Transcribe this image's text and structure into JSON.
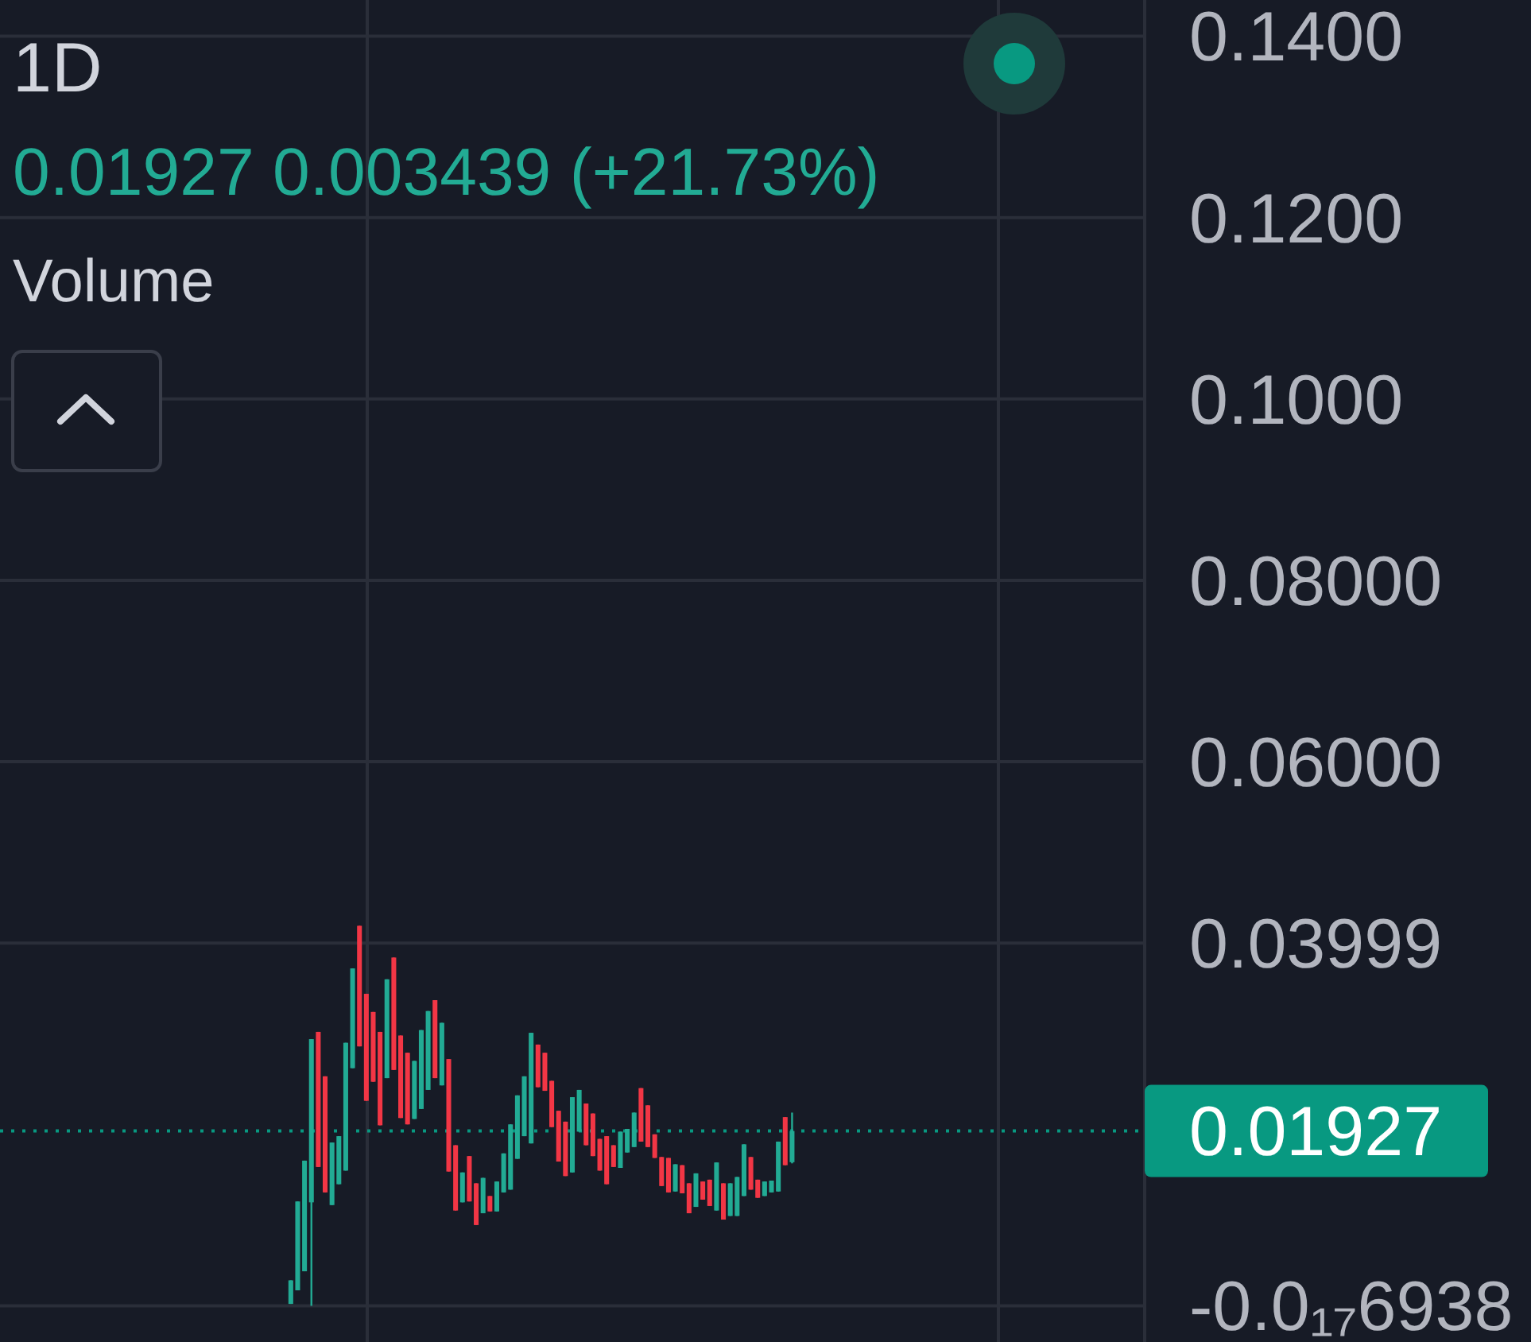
{
  "chart_data": {
    "type": "candlestick",
    "title": "1D",
    "subtitle": "0.01927 0.003439 (+21.73%)",
    "annotations": [
      "Volume"
    ],
    "categories": [
      null,
      null,
      null,
      null,
      null,
      null,
      null,
      null,
      null,
      null,
      null,
      null,
      null,
      null,
      null,
      null,
      null,
      null,
      null,
      null,
      null,
      null,
      null,
      null,
      null,
      null,
      null,
      null,
      null,
      null,
      null,
      null,
      null,
      null,
      null,
      null,
      null,
      null,
      null,
      null,
      null,
      null,
      null,
      null,
      null,
      null,
      null,
      null,
      null,
      null,
      null,
      null,
      null,
      null,
      null,
      null,
      null,
      null,
      null,
      null,
      null,
      null,
      null,
      null,
      null,
      null,
      null,
      null,
      null,
      null,
      null,
      null,
      null,
      null,
      null,
      null,
      null,
      null,
      null,
      null,
      null,
      null,
      null,
      null,
      null,
      null,
      null,
      null,
      null,
      null,
      null,
      null,
      null,
      null,
      null,
      null,
      null,
      null,
      null,
      null,
      null,
      null,
      null,
      null,
      null,
      null,
      null,
      null,
      null,
      null,
      null,
      null,
      null,
      null,
      null,
      null,
      null,
      null,
      null,
      null,
      null,
      null,
      null,
      null,
      null,
      null,
      null,
      null,
      null,
      null,
      null,
      null,
      null,
      null,
      null,
      null,
      null,
      null,
      null,
      null,
      null,
      null,
      null,
      null,
      null,
      null,
      null,
      null,
      null,
      null,
      null,
      null,
      null,
      null,
      null,
      null,
      null,
      null,
      null,
      null,
      null,
      null,
      null,
      null,
      null,
      null,
      null
    ],
    "ohlc": [
      null,
      null,
      null,
      null,
      null,
      null,
      null,
      null,
      null,
      null,
      null,
      null,
      null,
      null,
      null,
      null,
      null,
      null,
      null,
      null,
      null,
      null,
      null,
      null,
      null,
      null,
      null,
      null,
      null,
      null,
      null,
      null,
      null,
      null,
      null,
      null,
      null,
      null,
      null,
      null,
      null,
      null,
      [
        0.0002,
        0.0028,
        0.0002,
        0.0028
      ],
      [
        0.0017,
        0.0115,
        0.0017,
        0.0115
      ],
      [
        0.0038,
        0.016,
        0.0038,
        0.016
      ],
      [
        0.0114,
        0.0294,
        0,
        0.0294
      ],
      [
        0.0302,
        0.0302,
        0.0153,
        0.0153
      ],
      [
        0.0253,
        0.0253,
        0.0125,
        0.0125
      ],
      [
        0.0111,
        0.018,
        0.0111,
        0.018
      ],
      [
        0.0134,
        0.0187,
        0.0134,
        0.0187
      ],
      [
        0.0149,
        0.029,
        0.0149,
        0.029
      ],
      [
        0.0262,
        0.0372,
        0.0262,
        0.0372
      ],
      [
        0.0419,
        0.0419,
        0.0286,
        0.0286
      ],
      [
        0.0344,
        0.0344,
        0.0226,
        0.0226
      ],
      [
        0.0324,
        0.0324,
        0.0247,
        0.0247
      ],
      [
        0.0302,
        0.0302,
        0.0199,
        0.0199
      ],
      [
        0.0251,
        0.036,
        0.0251,
        0.036
      ],
      [
        0.0384,
        0.0384,
        0.026,
        0.026
      ],
      [
        0.0298,
        0.0298,
        0.0207,
        0.0207
      ],
      [
        0.0279,
        0.0279,
        0.02,
        0.02
      ],
      [
        0.0206,
        0.027,
        0.0206,
        0.027
      ],
      [
        0.0217,
        0.0304,
        0.0217,
        0.0304
      ],
      [
        0.0238,
        0.0325,
        0.0238,
        0.0325
      ],
      [
        0.0337,
        0.0337,
        0.0251,
        0.0251
      ],
      [
        0.0243,
        0.0312,
        0.0243,
        0.0312
      ],
      [
        0.0272,
        0.0272,
        0.0148,
        0.0148
      ],
      [
        0.0177,
        0.0177,
        0.0105,
        0.0105
      ],
      [
        0.0114,
        0.0147,
        0.0114,
        0.0147
      ],
      [
        0.0165,
        0.0165,
        0.0115,
        0.0115
      ],
      [
        0.0135,
        0.0135,
        0.0089,
        0.0089
      ],
      [
        0.0102,
        0.0141,
        0.0102,
        0.0141
      ],
      [
        0.0121,
        0.0121,
        0.0104,
        0.0104
      ],
      [
        0.0104,
        0.0137,
        0.0104,
        0.0137
      ],
      [
        0.0125,
        0.0168,
        0.0125,
        0.0168
      ],
      [
        0.0128,
        0.02,
        0.0128,
        0.02
      ],
      [
        0.0162,
        0.0232,
        0.0162,
        0.0232
      ],
      [
        0.0187,
        0.0253,
        0.0187,
        0.0253
      ],
      [
        0.0179,
        0.0301,
        0.0179,
        0.0301
      ],
      [
        0.0288,
        0.0288,
        0.0241,
        0.0241
      ],
      [
        0.0279,
        0.0279,
        0.0237,
        0.0237
      ],
      [
        0.0248,
        0.0248,
        0.0197,
        0.0197
      ],
      [
        0.0215,
        0.0215,
        0.0159,
        0.0159
      ],
      [
        0.0203,
        0.0203,
        0.0143,
        0.0143
      ],
      [
        0.0147,
        0.023,
        0.0147,
        0.023
      ],
      [
        0.0192,
        0.0238,
        0.0192,
        0.0238
      ],
      [
        0.0223,
        0.0223,
        0.0177,
        0.0177
      ],
      [
        0.0212,
        0.0212,
        0.0165,
        0.0165
      ],
      [
        0.0184,
        0.0184,
        0.0149,
        0.0149
      ],
      [
        0.0187,
        0.0187,
        0.0134,
        0.0134
      ],
      [
        0.0177,
        0.0177,
        0.0153,
        0.0153
      ],
      [
        0.0152,
        0.0192,
        0.0152,
        0.0192
      ],
      [
        0.0169,
        0.0195,
        0.0169,
        0.0195
      ],
      [
        0.0175,
        0.0213,
        0.0175,
        0.0213
      ],
      [
        0.024,
        0.024,
        0.0181,
        0.0181
      ],
      [
        0.0221,
        0.0221,
        0.0175,
        0.0175
      ],
      [
        0.0189,
        0.0189,
        0.0163,
        0.0163
      ],
      [
        0.0164,
        0.0164,
        0.0132,
        0.0132
      ],
      [
        0.0163,
        0.0163,
        0.0125,
        0.0125
      ],
      [
        0.0126,
        0.0156,
        0.0126,
        0.0156
      ],
      [
        0.0155,
        0.0155,
        0.0124,
        0.0124
      ],
      [
        0.0135,
        0.0135,
        0.0102,
        0.0102
      ],
      [
        0.0109,
        0.0146,
        0.0109,
        0.0146
      ],
      [
        0.0137,
        0.0137,
        0.0117,
        0.0117
      ],
      [
        0.0139,
        0.0139,
        0.011,
        0.011
      ],
      [
        0.0105,
        0.0158,
        0.0105,
        0.0158
      ],
      [
        0.0135,
        0.0135,
        0.0095,
        0.0095
      ],
      [
        0.0099,
        0.0135,
        0.0099,
        0.0135
      ],
      [
        0.0099,
        0.0142,
        0.0099,
        0.0142
      ],
      [
        0.0121,
        0.0178,
        0.0121,
        0.0178
      ],
      [
        0.0164,
        0.0164,
        0.0128,
        0.0128
      ],
      [
        0.0139,
        0.0139,
        0.0119,
        0.0119
      ],
      [
        0.0121,
        0.0137,
        0.0121,
        0.0137
      ],
      [
        0.0125,
        0.0138,
        0.0125,
        0.0138
      ],
      [
        0.0126,
        0.0181,
        0.0126,
        0.0181
      ],
      [
        0.0208,
        0.0208,
        0.0155,
        0.0155
      ],
      [
        0.01583,
        0.0213,
        0.0157,
        0.01927
      ],
      null,
      null,
      null,
      null,
      null,
      null,
      null,
      null,
      null,
      null,
      null,
      null,
      null,
      null,
      null,
      null,
      null,
      null,
      null,
      null,
      null,
      null,
      null,
      null,
      null,
      null,
      null,
      null,
      null,
      null,
      null,
      null,
      null,
      null,
      null,
      null,
      null,
      null,
      null,
      null,
      null,
      null,
      null,
      null,
      null,
      null,
      null,
      null,
      null,
      null,
      null
    ],
    "colors": [
      null,
      null,
      null,
      null,
      null,
      null,
      null,
      null,
      null,
      null,
      null,
      null,
      null,
      null,
      null,
      null,
      null,
      null,
      null,
      null,
      null,
      null,
      null,
      null,
      null,
      null,
      null,
      null,
      null,
      null,
      null,
      null,
      null,
      null,
      null,
      null,
      null,
      null,
      null,
      null,
      null,
      null,
      "#22ab94",
      "#22ab94",
      "#22ab94",
      "#22ab94",
      "#f23645",
      "#f23645",
      "#22ab94",
      "#22ab94",
      "#22ab94",
      "#22ab94",
      "#f23645",
      "#f23645",
      "#f23645",
      "#f23645",
      "#22ab94",
      "#f23645",
      "#f23645",
      "#f23645",
      "#22ab94",
      "#22ab94",
      "#22ab94",
      "#f23645",
      "#22ab94",
      "#f23645",
      "#f23645",
      "#22ab94",
      "#f23645",
      "#f23645",
      "#22ab94",
      "#f23645",
      "#22ab94",
      "#22ab94",
      "#22ab94",
      "#22ab94",
      "#22ab94",
      "#22ab94",
      "#f23645",
      "#f23645",
      "#f23645",
      "#f23645",
      "#f23645",
      "#22ab94",
      "#22ab94",
      "#f23645",
      "#f23645",
      "#f23645",
      "#f23645",
      "#f23645",
      "#22ab94",
      "#22ab94",
      "#22ab94",
      "#f23645",
      "#f23645",
      "#f23645",
      "#f23645",
      "#f23645",
      "#22ab94",
      "#f23645",
      "#f23645",
      "#22ab94",
      "#f23645",
      "#f23645",
      "#22ab94",
      "#f23645",
      "#22ab94",
      "#22ab94",
      "#22ab94",
      "#f23645",
      "#f23645",
      "#22ab94",
      "#22ab94",
      "#22ab94",
      "#f23645",
      "#22ab94",
      null,
      null,
      null,
      null,
      null,
      null,
      null,
      null,
      null,
      null,
      null,
      null,
      null,
      null,
      null,
      null,
      null,
      null,
      null,
      null,
      null,
      null,
      null,
      null,
      null,
      null,
      null,
      null,
      null,
      null,
      null,
      null,
      null,
      null,
      null,
      null,
      null,
      null,
      null,
      null,
      null,
      null,
      null,
      null,
      null,
      null,
      null,
      null,
      null,
      null,
      null
    ],
    "ylim": [
      -0.004,
      0.144
    ],
    "yticks": [
      {
        "value": 0.14,
        "label": "0.1400"
      },
      {
        "value": 0.12,
        "label": "0.1200"
      },
      {
        "value": 0.1,
        "label": "0.1000"
      },
      {
        "value": 0.08,
        "label": "0.08000"
      },
      {
        "value": 0.06,
        "label": "0.06000"
      },
      0.03999,
      {
        "value": -6.938e-18,
        "label": "-0.0₁₇6938"
      }
    ],
    "grid": true,
    "tick_labels": "y",
    "ref_lines": [
      {
        "axis": "y",
        "value": 0.01927,
        "label": "0.01927",
        "color": "#089981",
        "line_style": "dotted"
      }
    ]
  }
}
